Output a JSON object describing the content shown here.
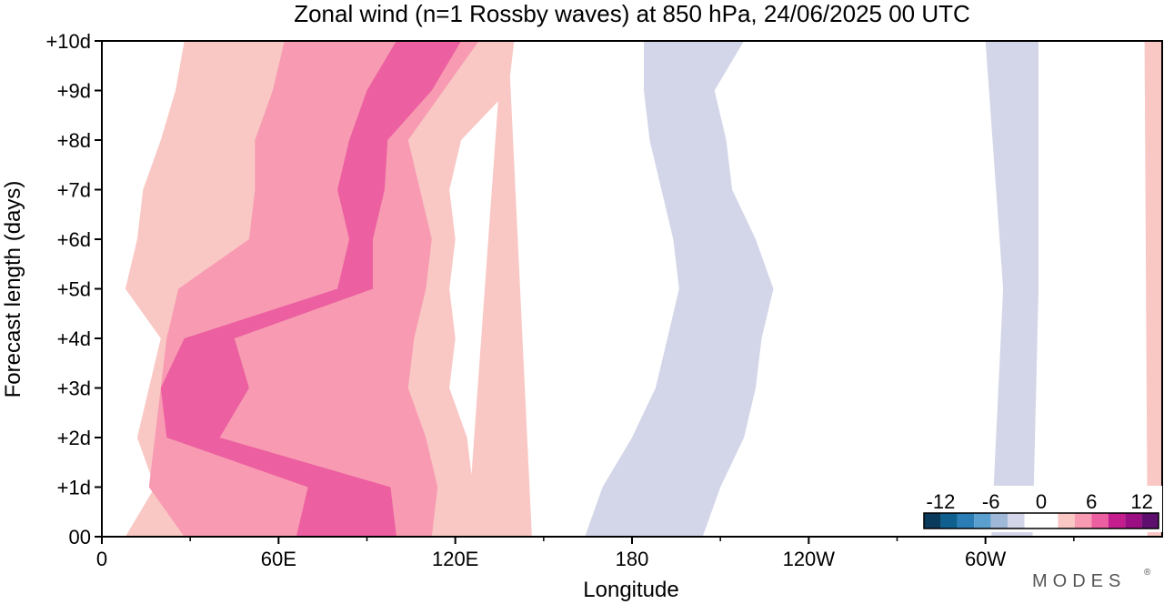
{
  "chart_data": {
    "type": "heatmap",
    "title": "Zonal wind (n=1 Rossby waves) at 850 hPa,  24/06/2025  00 UTC",
    "xlabel": "Longitude",
    "ylabel": "Forecast length (days)",
    "x_range_deg_east": [
      0,
      360
    ],
    "y_range_days": [
      0,
      10
    ],
    "x_ticks": [
      {
        "lon": 0,
        "label": "0"
      },
      {
        "lon": 60,
        "label": "60E"
      },
      {
        "lon": 120,
        "label": "120E"
      },
      {
        "lon": 180,
        "label": "180"
      },
      {
        "lon": 240,
        "label": "120W"
      },
      {
        "lon": 300,
        "label": "60W"
      }
    ],
    "x_minor_ticks": [
      30,
      90,
      150,
      210,
      270,
      330
    ],
    "y_ticks": [
      {
        "day": 0,
        "label": "00"
      },
      {
        "day": 1,
        "label": "+1d"
      },
      {
        "day": 2,
        "label": "+2d"
      },
      {
        "day": 3,
        "label": "+3d"
      },
      {
        "day": 4,
        "label": "+4d"
      },
      {
        "day": 5,
        "label": "+5d"
      },
      {
        "day": 6,
        "label": "+6d"
      },
      {
        "day": 7,
        "label": "+7d"
      },
      {
        "day": 8,
        "label": "+8d"
      },
      {
        "day": 9,
        "label": "+9d"
      },
      {
        "day": 10,
        "label": "+10d"
      }
    ],
    "colorbar": {
      "levels": [
        -14,
        -12,
        -10,
        -8,
        -6,
        -4,
        -2,
        0,
        2,
        4,
        6,
        8,
        10,
        12,
        14
      ],
      "colors": [
        "#0a3a5c",
        "#0f5f8f",
        "#2a7db5",
        "#5b9fcf",
        "#a0b8d8",
        "#d3d6e8",
        "#ffffff",
        "#ffffff",
        "#f9c8c4",
        "#f79ab2",
        "#ec5fa0",
        "#c61d8e",
        "#9b0f82",
        "#5e0f6e"
      ],
      "labels": [
        "-12",
        "-6",
        "0",
        "6",
        "12"
      ],
      "label_values": [
        -12,
        -6,
        0,
        6,
        12
      ]
    },
    "regions": [
      {
        "value": 2,
        "lon_start": [
          8,
          18,
          12,
          16,
          20,
          8,
          12,
          14,
          20,
          25,
          28
        ],
        "lon_end": [
          128,
          126,
          124,
          118,
          120,
          118,
          120,
          118,
          122,
          138,
          140
        ]
      },
      {
        "value": 4,
        "lon_start": [
          28,
          16,
          18,
          20,
          22,
          26,
          50,
          52,
          52,
          58,
          62
        ],
        "lon_end": [
          112,
          114,
          110,
          104,
          106,
          110,
          112,
          108,
          104,
          116,
          128
        ]
      },
      {
        "value": 6,
        "lon_start": [
          66,
          70,
          22,
          20,
          28,
          80,
          84,
          80,
          84,
          90,
          100
        ],
        "lon_end": [
          100,
          98,
          40,
          50,
          45,
          92,
          92,
          96,
          97,
          112,
          122
        ]
      },
      {
        "value": 8,
        "lon_start": [
          82
        ],
        "lon_end": [
          92
        ]
      },
      {
        "value": 2,
        "lon_start": [
          124,
          136
        ],
        "lon_end": [
          146,
          138
        ]
      },
      {
        "value": -2,
        "lon_start": [
          156,
          158,
          164,
          172,
          176,
          178,
          160,
          156,
          168,
          176,
          176
        ],
        "lon_end": [
          226,
          228,
          236,
          244,
          252,
          262,
          248,
          246,
          240,
          258,
          270
        ]
      },
      {
        "value": -4,
        "lon_start": [
          164,
          170,
          180,
          188,
          192,
          196,
          194,
          190,
          186,
          184,
          184
        ],
        "lon_end": [
          204,
          210,
          218,
          222,
          224,
          228,
          222,
          214,
          212,
          208,
          218
        ]
      },
      {
        "value": -2,
        "lon_start": [
          268,
          276,
          280,
          282,
          286,
          292,
          296,
          298,
          300,
          302,
          298
        ],
        "lon_end": [
          292,
          298,
          326,
          346,
          354,
          358,
          348,
          340,
          346,
          350,
          356
        ]
      },
      {
        "value": -4,
        "lon_start": [
          302,
          306,
          300
        ],
        "lon_end": [
          316,
          318,
          318
        ]
      },
      {
        "value": -6,
        "lon_start": [
          304
        ],
        "lon_end": [
          314
        ]
      },
      {
        "value": 2,
        "lon_start": [
          355,
          354
        ],
        "lon_end": [
          360,
          360
        ]
      }
    ]
  },
  "logo_text": "MODES"
}
